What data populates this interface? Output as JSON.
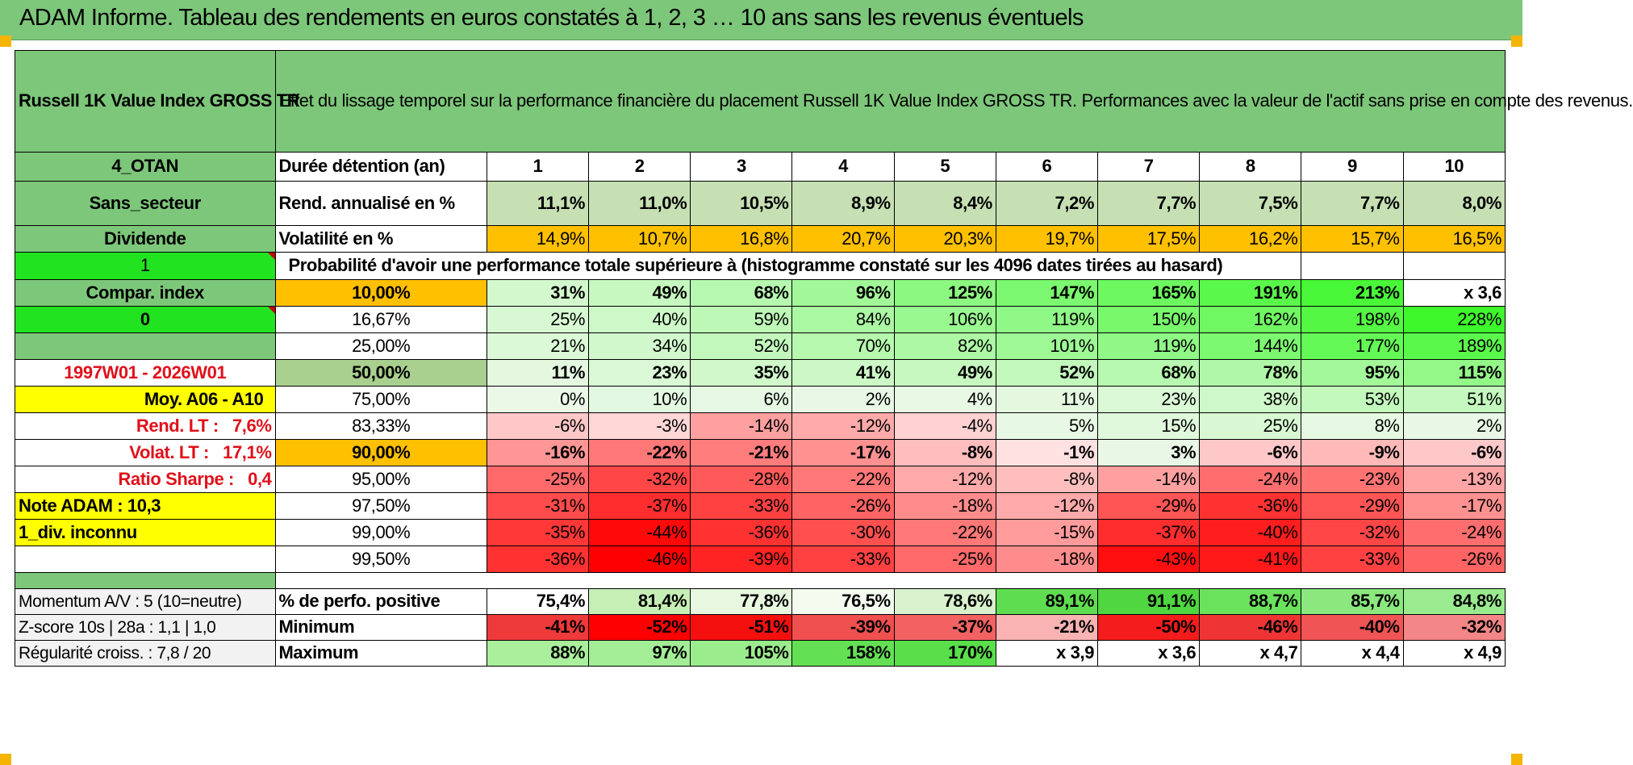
{
  "header": {
    "title": "ADAM Informe. Tableau des rendements en euros constatés à 1, 2, 3 … 10 ans sans les revenus éventuels"
  },
  "left": {
    "fund": "Russell 1K Value Index GROSS TR",
    "code": "4_OTAN",
    "sector": "Sans_secteur",
    "dividend": "Dividende",
    "flag1": "1",
    "compar_index": "Compar. index",
    "flag0": "0",
    "period": "1997W01 - 2026W01",
    "moy": "Moy. A06 - A10",
    "rend_lt_label": "Rend. LT :",
    "rend_lt_value": "7,6%",
    "volat_lt_label": "Volat. LT :",
    "volat_lt_value": "17,1%",
    "sharpe_label": "Ratio Sharpe :",
    "sharpe_value": "0,4",
    "note": "Note ADAM : 10,3",
    "div_unknown": "1_div. inconnu"
  },
  "description": "Effet du lissage temporel sur la performance financière du placement Russell 1K Value Index GROSS TR. Performances avec la valeur de l'actif sans prise en compte des revenus.",
  "durations": {
    "label": "Durée détention (an)",
    "values": [
      "1",
      "2",
      "3",
      "4",
      "5",
      "6",
      "7",
      "8",
      "9",
      "10"
    ]
  },
  "annualized": {
    "label": "Rend. annualisé en %",
    "values": [
      "11,1%",
      "11,0%",
      "10,5%",
      "8,9%",
      "8,4%",
      "7,2%",
      "7,7%",
      "7,5%",
      "7,7%",
      "8,0%"
    ]
  },
  "volatility": {
    "label": "Volatilité en %",
    "values": [
      "14,9%",
      "10,7%",
      "16,8%",
      "20,7%",
      "20,3%",
      "19,7%",
      "17,5%",
      "16,2%",
      "15,7%",
      "16,5%"
    ]
  },
  "probability_heading": "Probabilité d'avoir une performance totale supérieure à (histogramme constaté sur les 4096 dates tirées au hasard)",
  "percentiles": [
    {
      "p": "10,00%",
      "values": [
        "31%",
        "49%",
        "68%",
        "96%",
        "125%",
        "147%",
        "165%",
        "191%",
        "213%",
        "x 3,6"
      ]
    },
    {
      "p": "16,67%",
      "values": [
        "25%",
        "40%",
        "59%",
        "84%",
        "106%",
        "119%",
        "150%",
        "162%",
        "198%",
        "228%"
      ]
    },
    {
      "p": "25,00%",
      "values": [
        "21%",
        "34%",
        "52%",
        "70%",
        "82%",
        "101%",
        "119%",
        "144%",
        "177%",
        "189%"
      ]
    },
    {
      "p": "50,00%",
      "values": [
        "11%",
        "23%",
        "35%",
        "41%",
        "49%",
        "52%",
        "68%",
        "78%",
        "95%",
        "115%"
      ]
    },
    {
      "p": "75,00%",
      "values": [
        "0%",
        "10%",
        "6%",
        "2%",
        "4%",
        "11%",
        "23%",
        "38%",
        "53%",
        "51%"
      ]
    },
    {
      "p": "83,33%",
      "values": [
        "-6%",
        "-3%",
        "-14%",
        "-12%",
        "-4%",
        "5%",
        "15%",
        "25%",
        "8%",
        "2%"
      ]
    },
    {
      "p": "90,00%",
      "values": [
        "-16%",
        "-22%",
        "-21%",
        "-17%",
        "-8%",
        "-1%",
        "3%",
        "-6%",
        "-9%",
        "-6%"
      ]
    },
    {
      "p": "95,00%",
      "values": [
        "-25%",
        "-32%",
        "-28%",
        "-22%",
        "-12%",
        "-8%",
        "-14%",
        "-24%",
        "-23%",
        "-13%"
      ]
    },
    {
      "p": "97,50%",
      "values": [
        "-31%",
        "-37%",
        "-33%",
        "-26%",
        "-18%",
        "-12%",
        "-29%",
        "-36%",
        "-29%",
        "-17%"
      ]
    },
    {
      "p": "99,00%",
      "values": [
        "-35%",
        "-44%",
        "-36%",
        "-30%",
        "-22%",
        "-15%",
        "-37%",
        "-40%",
        "-32%",
        "-24%"
      ]
    },
    {
      "p": "99,50%",
      "values": [
        "-36%",
        "-46%",
        "-39%",
        "-33%",
        "-25%",
        "-18%",
        "-43%",
        "-41%",
        "-33%",
        "-26%"
      ]
    }
  ],
  "bottom": {
    "momentum": "Momentum A/V : 5 (10=neutre)",
    "zscore": "Z-score 10s | 28a : 1,1 | 1,0",
    "regularity": "Régularité croiss. : 7,8 / 20",
    "positive": {
      "label": "% de perfo. positive",
      "values": [
        "75,4%",
        "81,4%",
        "77,8%",
        "76,5%",
        "78,6%",
        "89,1%",
        "91,1%",
        "88,7%",
        "85,7%",
        "84,8%"
      ]
    },
    "minimum": {
      "label": "Minimum",
      "values": [
        "-41%",
        "-52%",
        "-51%",
        "-39%",
        "-37%",
        "-21%",
        "-50%",
        "-46%",
        "-40%",
        "-32%"
      ]
    },
    "maximum": {
      "label": "Maximum",
      "values": [
        "88%",
        "97%",
        "105%",
        "158%",
        "170%",
        "x 3,9",
        "x 3,6",
        "x 4,7",
        "x 4,4",
        "x 4,9"
      ]
    }
  },
  "colors": {
    "header_green": "#7dc77a",
    "lime": "#22e31f",
    "yellow": "#ffff00",
    "orange": "#ffc000",
    "label_red": "#e0101a"
  }
}
